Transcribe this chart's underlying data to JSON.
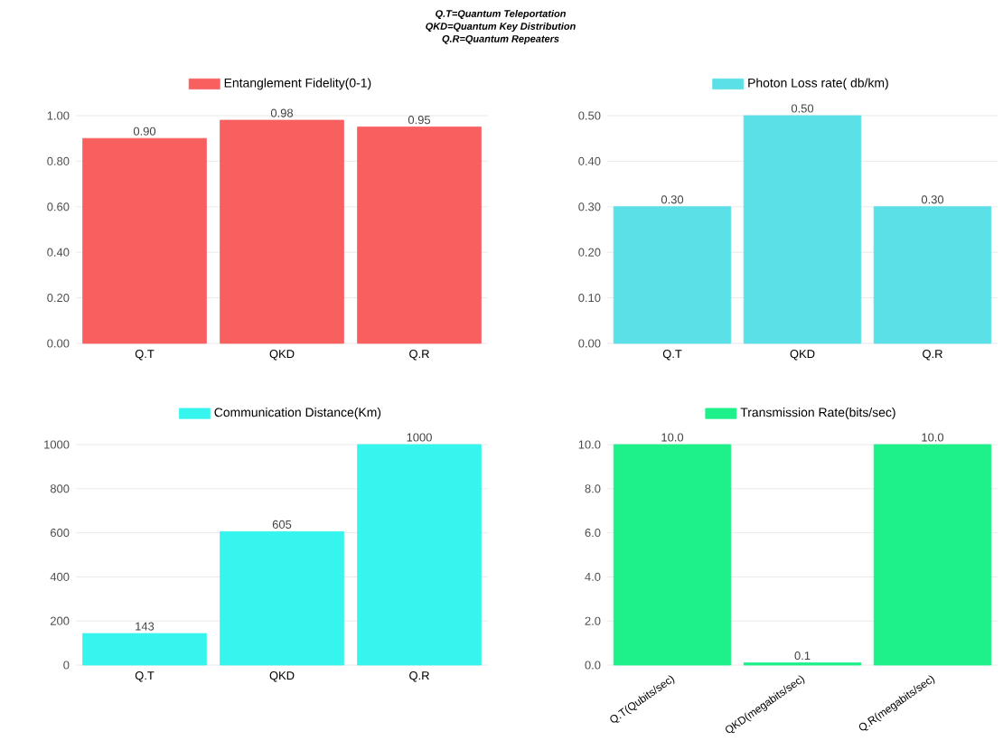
{
  "chart_data": [
    {
      "type": "bar",
      "annotations": [
        "Q.T=Quantum Teleportation",
        "QKD=Quantum Key Distribution",
        "Q.R=Quantum Repeaters"
      ],
      "categories": [
        "Q.T",
        "QKD",
        "Q.R"
      ],
      "series": [
        {
          "name": "Entanglement Fidelity(0-1)",
          "color": "#f85f5f",
          "values": [
            0.9,
            0.98,
            0.95
          ],
          "value_labels": [
            "0.90",
            "0.98",
            "0.95"
          ]
        }
      ],
      "ylim": [
        0,
        1
      ],
      "yticks": [
        {
          "value": 0,
          "label": "0.00"
        },
        {
          "value": 0.2,
          "label": "0.20"
        },
        {
          "value": 0.4,
          "label": "0.40"
        },
        {
          "value": 0.6,
          "label": "0.60"
        },
        {
          "value": 0.8,
          "label": "0.80"
        },
        {
          "value": 1,
          "label": "1.00"
        }
      ],
      "grid": "y",
      "legend": "top"
    },
    {
      "type": "bar",
      "categories": [
        "Q.T",
        "QKD",
        "Q.R"
      ],
      "series": [
        {
          "name": "Photon Loss rate( db/km)",
          "color": "#5ae0e6",
          "values": [
            0.3,
            0.5,
            0.3
          ],
          "value_labels": [
            "0.30",
            "0.50",
            "0.30"
          ]
        }
      ],
      "ylim": [
        0,
        0.5
      ],
      "yticks": [
        {
          "value": 0,
          "label": "0.00"
        },
        {
          "value": 0.1,
          "label": "0.10"
        },
        {
          "value": 0.2,
          "label": "0.20"
        },
        {
          "value": 0.3,
          "label": "0.30"
        },
        {
          "value": 0.4,
          "label": "0.40"
        },
        {
          "value": 0.5,
          "label": "0.50"
        }
      ],
      "grid": "y",
      "legend": "top"
    },
    {
      "type": "bar",
      "categories": [
        "Q.T",
        "QKD",
        "Q.R"
      ],
      "series": [
        {
          "name": "Communication Distance(Km)",
          "color": "#36f5ee",
          "values": [
            143,
            605,
            1000
          ],
          "value_labels": [
            "143",
            "605",
            "1000"
          ]
        }
      ],
      "ylim": [
        0,
        1000
      ],
      "yticks": [
        0,
        200,
        400,
        600,
        800,
        1000
      ],
      "grid": "y",
      "legend": "top"
    },
    {
      "type": "bar",
      "categories": [
        "Q.T(Qubits/sec)",
        "QKD(megabits/sec)",
        "Q.R(megabits/sec)"
      ],
      "series": [
        {
          "name": "Transmission Rate(bits/sec)",
          "color": "#1ef08a",
          "values": [
            10.0,
            0.1,
            10.0
          ],
          "value_labels": [
            "10.0",
            "0.1",
            "10.0"
          ]
        }
      ],
      "ylim": [
        0,
        10
      ],
      "yticks": [
        {
          "value": 0,
          "label": "0.0"
        },
        {
          "value": 2,
          "label": "2.0"
        },
        {
          "value": 4,
          "label": "4.0"
        },
        {
          "value": 6,
          "label": "6.0"
        },
        {
          "value": 8,
          "label": "8.0"
        },
        {
          "value": 10,
          "label": "10.0"
        }
      ],
      "grid": "y",
      "legend": "top"
    }
  ]
}
